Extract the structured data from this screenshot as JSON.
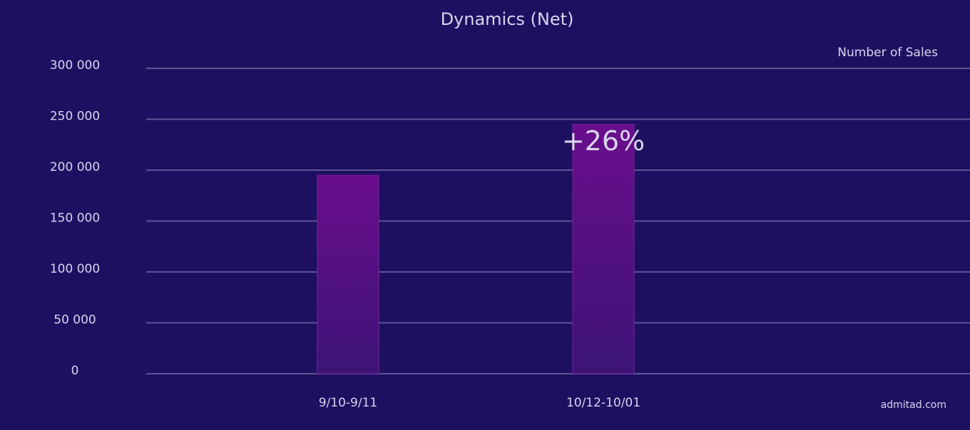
{
  "chart_data": {
    "type": "bar",
    "title": "Dynamics (Net)",
    "series_label": "Number of Sales",
    "categories": [
      "9/10-9/11",
      "10/12-10/01"
    ],
    "values": [
      195000,
      245000
    ],
    "color": "#6a0d8c",
    "ylim": [
      0,
      300000
    ],
    "yticks": [
      0,
      {
        "value": 50000,
        "label": "50 000"
      },
      {
        "value": 100000,
        "label": "100 000"
      },
      {
        "value": 150000,
        "label": "150 000"
      },
      {
        "value": 200000,
        "label": "200 000"
      },
      {
        "value": 250000,
        "label": "250 000"
      },
      {
        "value": 300000,
        "label": "300 000"
      }
    ],
    "grid": true,
    "annotations": [
      "+26%",
      "admitad.com"
    ]
  }
}
